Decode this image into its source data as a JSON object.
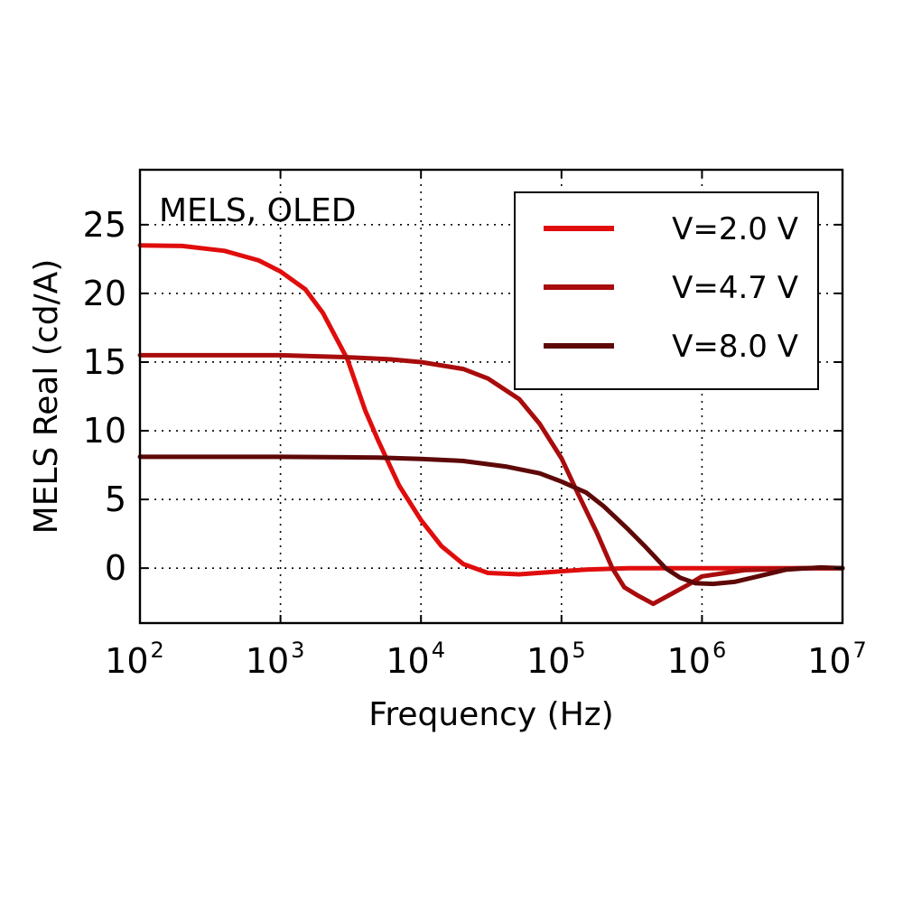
{
  "chart_data": {
    "type": "line",
    "annotation": "MELS, OLED",
    "xlabel": "Frequency (Hz)",
    "ylabel": "MELS Real (cd/A)",
    "x_scale": "log",
    "xlim": [
      100,
      10000000
    ],
    "ylim": [
      -4,
      29
    ],
    "x_ticks": [
      {
        "value": 100,
        "base": "10",
        "exp": "2"
      },
      {
        "value": 1000,
        "base": "10",
        "exp": "3"
      },
      {
        "value": 10000,
        "base": "10",
        "exp": "4"
      },
      {
        "value": 100000,
        "base": "10",
        "exp": "5"
      },
      {
        "value": 1000000,
        "base": "10",
        "exp": "6"
      },
      {
        "value": 10000000,
        "base": "10",
        "exp": "7"
      }
    ],
    "y_ticks": [
      {
        "value": 0,
        "label": "0"
      },
      {
        "value": 5,
        "label": "5"
      },
      {
        "value": 10,
        "label": "10"
      },
      {
        "value": 15,
        "label": "15"
      },
      {
        "value": 20,
        "label": "20"
      },
      {
        "value": 25,
        "label": "25"
      }
    ],
    "grid": true,
    "legend_position": "top-right",
    "series": [
      {
        "name": "V=2.0 V",
        "color": "#e00d0d",
        "points": [
          [
            100,
            23.5
          ],
          [
            200,
            23.45
          ],
          [
            400,
            23.1
          ],
          [
            700,
            22.4
          ],
          [
            1000,
            21.6
          ],
          [
            1500,
            20.3
          ],
          [
            2000,
            18.6
          ],
          [
            3000,
            15.2
          ],
          [
            4000,
            11.5
          ],
          [
            5000,
            9.2
          ],
          [
            7000,
            6.0
          ],
          [
            10000,
            3.5
          ],
          [
            14000,
            1.6
          ],
          [
            20000,
            0.3
          ],
          [
            30000,
            -0.35
          ],
          [
            50000,
            -0.45
          ],
          [
            80000,
            -0.3
          ],
          [
            150000,
            -0.1
          ],
          [
            300000,
            0.0
          ],
          [
            1000000,
            0.0
          ],
          [
            10000000,
            0.0
          ]
        ]
      },
      {
        "name": "V=4.7 V",
        "color": "#a80c0c",
        "points": [
          [
            100,
            15.5
          ],
          [
            1000,
            15.5
          ],
          [
            3000,
            15.35
          ],
          [
            6000,
            15.2
          ],
          [
            10000,
            15.0
          ],
          [
            20000,
            14.5
          ],
          [
            30000,
            13.8
          ],
          [
            50000,
            12.3
          ],
          [
            70000,
            10.5
          ],
          [
            100000,
            8.0
          ],
          [
            130000,
            5.5
          ],
          [
            180000,
            2.5
          ],
          [
            230000,
            0.0
          ],
          [
            280000,
            -1.4
          ],
          [
            350000,
            -2.0
          ],
          [
            450000,
            -2.6
          ],
          [
            600000,
            -1.9
          ],
          [
            800000,
            -1.2
          ],
          [
            1000000,
            -0.6
          ],
          [
            2000000,
            -0.15
          ],
          [
            5000000,
            0.0
          ],
          [
            10000000,
            0.0
          ]
        ]
      },
      {
        "name": "V=8.0 V",
        "color": "#5e0808",
        "points": [
          [
            100,
            8.1
          ],
          [
            1000,
            8.1
          ],
          [
            5000,
            8.05
          ],
          [
            10000,
            7.95
          ],
          [
            20000,
            7.8
          ],
          [
            40000,
            7.4
          ],
          [
            70000,
            6.9
          ],
          [
            100000,
            6.3
          ],
          [
            150000,
            5.5
          ],
          [
            200000,
            4.5
          ],
          [
            300000,
            2.8
          ],
          [
            400000,
            1.5
          ],
          [
            550000,
            0.0
          ],
          [
            700000,
            -0.7
          ],
          [
            900000,
            -1.1
          ],
          [
            1200000,
            -1.15
          ],
          [
            1700000,
            -1.0
          ],
          [
            2500000,
            -0.6
          ],
          [
            4000000,
            -0.1
          ],
          [
            7000000,
            0.05
          ],
          [
            10000000,
            0.0
          ]
        ]
      }
    ]
  }
}
